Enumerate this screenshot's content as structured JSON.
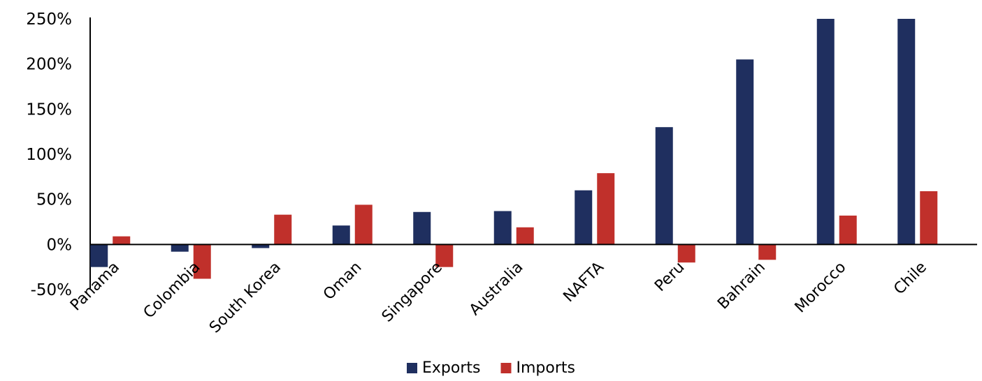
{
  "chart_data": {
    "type": "bar",
    "categories": [
      "Panama",
      "Colombia",
      "South Korea",
      "Oman",
      "Singapore",
      "Australia",
      "NAFTA",
      "Peru",
      "Bahrain",
      "Morocco",
      "Chile"
    ],
    "series": [
      {
        "name": "Exports",
        "color": "#1f2f5f",
        "values": [
          -25,
          -8,
          -4,
          21,
          36,
          37,
          60,
          130,
          205,
          250,
          250
        ]
      },
      {
        "name": "Imports",
        "color": "#c0302b",
        "values": [
          9,
          -38,
          33,
          44,
          -25,
          19,
          79,
          -20,
          -17,
          32,
          59
        ]
      }
    ],
    "ylim": [
      -50,
      250
    ],
    "yticks": [
      250,
      200,
      150,
      100,
      50,
      0,
      -50
    ],
    "ytick_labels": [
      "250%",
      "200%",
      "150%",
      "100%",
      "50%",
      "0%",
      "-50%"
    ],
    "legend_position": "bottom-center",
    "grid": false
  }
}
